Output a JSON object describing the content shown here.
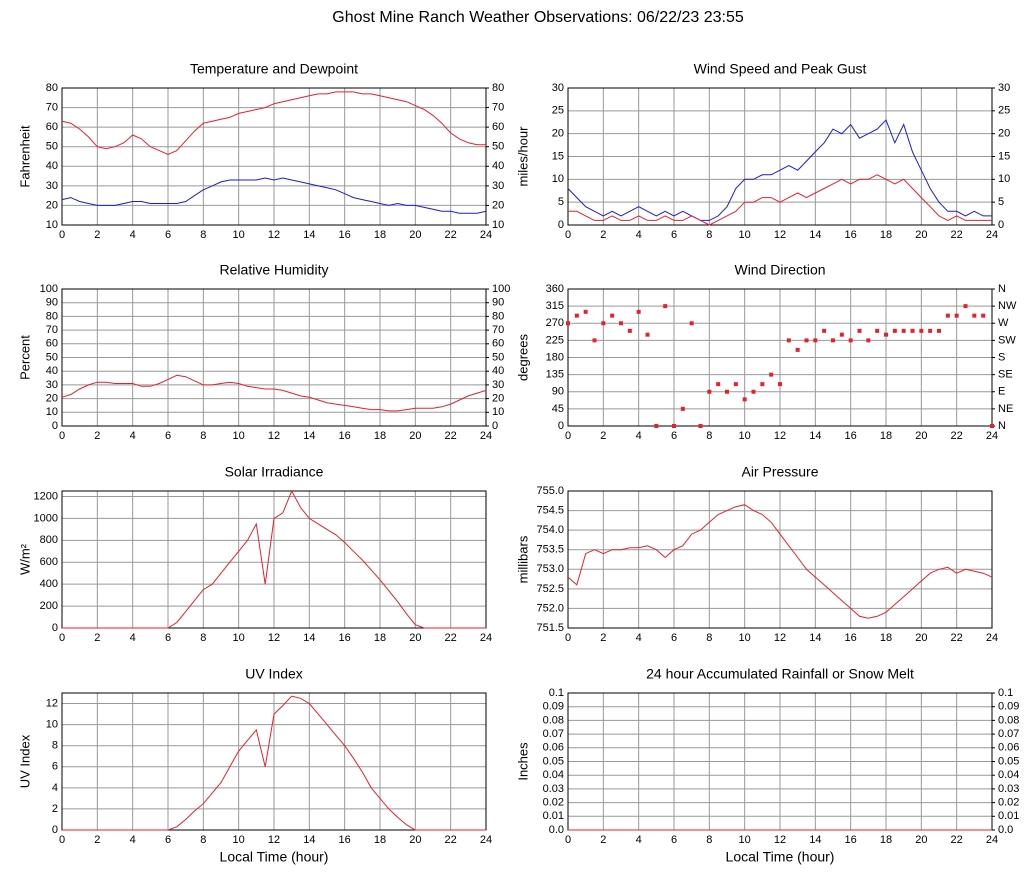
{
  "title": "Ghost Mine Ranch Weather Observations: 06/22/23 23:55",
  "chart_data": [
    {
      "type": "line",
      "title": "Temperature and Dewpoint",
      "ylabel": "Fahrenheit",
      "grid": true,
      "x": [
        0,
        0.5,
        1,
        1.5,
        2,
        2.5,
        3,
        3.5,
        4,
        4.5,
        5,
        5.5,
        6,
        6.5,
        7,
        7.5,
        8,
        8.5,
        9,
        9.5,
        10,
        10.5,
        11,
        11.5,
        12,
        12.5,
        13,
        13.5,
        14,
        14.5,
        15,
        15.5,
        16,
        16.5,
        17,
        17.5,
        18,
        18.5,
        19,
        19.5,
        20,
        20.5,
        21,
        21.5,
        22,
        22.5,
        23,
        23.5,
        24
      ],
      "xlim": [
        0,
        24
      ],
      "xticks": [
        0,
        2,
        4,
        6,
        8,
        10,
        12,
        14,
        16,
        18,
        20,
        22,
        24
      ],
      "ylim": [
        10,
        80
      ],
      "yticks": [
        10,
        20,
        30,
        40,
        50,
        60,
        70,
        80
      ],
      "y2lim": [
        10,
        80
      ],
      "y2ticks": [
        10,
        20,
        30,
        40,
        50,
        60,
        70,
        80
      ],
      "series": [
        {
          "color": "#e8202a",
          "values": [
            63,
            62,
            59,
            55,
            50,
            49,
            50,
            52,
            56,
            54,
            50,
            48,
            46,
            48,
            53,
            58,
            62,
            63,
            64,
            65,
            67,
            68,
            69,
            70,
            72,
            73,
            74,
            75,
            76,
            77,
            77,
            78,
            78,
            78,
            77,
            77,
            76,
            75,
            74,
            73,
            71,
            69,
            66,
            62,
            57,
            54,
            52,
            51,
            51
          ]
        },
        {
          "color": "#1a1ae0",
          "values": [
            23,
            24,
            22,
            21,
            20,
            20,
            20,
            21,
            22,
            22,
            21,
            21,
            21,
            21,
            22,
            25,
            28,
            30,
            32,
            33,
            33,
            33,
            33,
            34,
            33,
            34,
            33,
            32,
            31,
            30,
            29,
            28,
            26,
            24,
            23,
            22,
            21,
            20,
            21,
            20,
            20,
            19,
            18,
            17,
            17,
            16,
            16,
            16,
            17
          ]
        }
      ]
    },
    {
      "type": "line",
      "title": "Wind Speed and Peak Gust",
      "ylabel": "miles/hour",
      "grid": true,
      "x": [
        0,
        0.5,
        1,
        1.5,
        2,
        2.5,
        3,
        3.5,
        4,
        4.5,
        5,
        5.5,
        6,
        6.5,
        7,
        7.5,
        8,
        8.5,
        9,
        9.5,
        10,
        10.5,
        11,
        11.5,
        12,
        12.5,
        13,
        13.5,
        14,
        14.5,
        15,
        15.5,
        16,
        16.5,
        17,
        17.5,
        18,
        18.5,
        19,
        19.5,
        20,
        20.5,
        21,
        21.5,
        22,
        22.5,
        23,
        23.5,
        24
      ],
      "xlim": [
        0,
        24
      ],
      "xticks": [
        0,
        2,
        4,
        6,
        8,
        10,
        12,
        14,
        16,
        18,
        20,
        22,
        24
      ],
      "ylim": [
        0,
        30
      ],
      "yticks": [
        0,
        5,
        10,
        15,
        20,
        25,
        30
      ],
      "y2lim": [
        0,
        30
      ],
      "y2ticks": [
        0,
        5,
        10,
        15,
        20,
        25,
        30
      ],
      "series": [
        {
          "color": "#1a1ae0",
          "values": [
            8,
            6,
            4,
            3,
            2,
            3,
            2,
            3,
            4,
            3,
            2,
            3,
            2,
            3,
            2,
            1,
            1,
            2,
            4,
            8,
            10,
            10,
            11,
            11,
            12,
            13,
            12,
            14,
            16,
            18,
            21,
            20,
            22,
            19,
            20,
            21,
            23,
            18,
            22,
            16,
            12,
            8,
            5,
            3,
            3,
            2,
            3,
            2,
            2
          ]
        },
        {
          "color": "#e8202a",
          "values": [
            3,
            3,
            2,
            1,
            1,
            2,
            1,
            1,
            2,
            1,
            1,
            2,
            1,
            1,
            2,
            1,
            0,
            1,
            2,
            3,
            5,
            5,
            6,
            6,
            5,
            6,
            7,
            6,
            7,
            8,
            9,
            10,
            9,
            10,
            10,
            11,
            10,
            9,
            10,
            8,
            6,
            4,
            2,
            1,
            2,
            1,
            1,
            1,
            1
          ]
        }
      ]
    },
    {
      "type": "line",
      "title": "Relative Humidity",
      "ylabel": "Percent",
      "grid": true,
      "x": [
        0,
        0.5,
        1,
        1.5,
        2,
        2.5,
        3,
        3.5,
        4,
        4.5,
        5,
        5.5,
        6,
        6.5,
        7,
        7.5,
        8,
        8.5,
        9,
        9.5,
        10,
        10.5,
        11,
        11.5,
        12,
        12.5,
        13,
        13.5,
        14,
        14.5,
        15,
        15.5,
        16,
        16.5,
        17,
        17.5,
        18,
        18.5,
        19,
        19.5,
        20,
        20.5,
        21,
        21.5,
        22,
        22.5,
        23,
        23.5,
        24
      ],
      "xlim": [
        0,
        24
      ],
      "xticks": [
        0,
        2,
        4,
        6,
        8,
        10,
        12,
        14,
        16,
        18,
        20,
        22,
        24
      ],
      "ylim": [
        0,
        100
      ],
      "yticks": [
        0,
        10,
        20,
        30,
        40,
        50,
        60,
        70,
        80,
        90,
        100
      ],
      "y2lim": [
        0,
        100
      ],
      "y2ticks": [
        0,
        10,
        20,
        30,
        40,
        50,
        60,
        70,
        80,
        90,
        100
      ],
      "series": [
        {
          "color": "#e8202a",
          "values": [
            21,
            23,
            27,
            30,
            32,
            32,
            31,
            31,
            31,
            29,
            29,
            31,
            34,
            37,
            36,
            33,
            30,
            30,
            31,
            32,
            31,
            29,
            28,
            27,
            27,
            26,
            24,
            22,
            21,
            19,
            17,
            16,
            15,
            14,
            13,
            12,
            12,
            11,
            11,
            12,
            13,
            13,
            13,
            14,
            16,
            19,
            22,
            24,
            26
          ]
        }
      ]
    },
    {
      "type": "scatter",
      "title": "Wind Direction",
      "ylabel": "degrees",
      "grid": true,
      "x": [
        0,
        0.5,
        1,
        1.5,
        2,
        2.5,
        3,
        3.5,
        4,
        4.5,
        5,
        5.5,
        6,
        6.5,
        7,
        7.5,
        8,
        8.5,
        9,
        9.5,
        10,
        10.5,
        11,
        11.5,
        12,
        12.5,
        13,
        13.5,
        14,
        14.5,
        15,
        15.5,
        16,
        16.5,
        17,
        17.5,
        18,
        18.5,
        19,
        19.5,
        20,
        20.5,
        21,
        21.5,
        22,
        22.5,
        23,
        23.5,
        24
      ],
      "xlim": [
        0,
        24
      ],
      "xticks": [
        0,
        2,
        4,
        6,
        8,
        10,
        12,
        14,
        16,
        18,
        20,
        22,
        24
      ],
      "ylim": [
        0,
        360
      ],
      "yticks": [
        0,
        45,
        90,
        135,
        180,
        225,
        270,
        315,
        360
      ],
      "y2lim": [
        0,
        360
      ],
      "y2ticks": [
        {
          "value": 0,
          "label": "N"
        },
        {
          "value": 45,
          "label": "NE"
        },
        {
          "value": 90,
          "label": "E"
        },
        {
          "value": 135,
          "label": "SE"
        },
        {
          "value": 180,
          "label": "S"
        },
        {
          "value": 225,
          "label": "SW"
        },
        {
          "value": 270,
          "label": "W"
        },
        {
          "value": 315,
          "label": "NW"
        },
        {
          "value": 360,
          "label": "N"
        }
      ],
      "series": [
        {
          "color": "#e8202a",
          "values": [
            270,
            290,
            300,
            225,
            270,
            290,
            270,
            250,
            300,
            240,
            0,
            315,
            0,
            45,
            270,
            0,
            90,
            110,
            90,
            110,
            70,
            90,
            110,
            135,
            110,
            225,
            200,
            225,
            225,
            250,
            225,
            240,
            225,
            250,
            225,
            250,
            240,
            250,
            250,
            250,
            250,
            250,
            250,
            290,
            290,
            315,
            290,
            290,
            0
          ]
        }
      ]
    },
    {
      "type": "line",
      "title": "Solar Irradiance",
      "ylabel": "W/m²",
      "grid": true,
      "x": [
        0,
        0.5,
        1,
        1.5,
        2,
        2.5,
        3,
        3.5,
        4,
        4.5,
        5,
        5.5,
        6,
        6.5,
        7,
        7.5,
        8,
        8.5,
        9,
        9.5,
        10,
        10.5,
        11,
        11.5,
        12,
        12.5,
        13,
        13.5,
        14,
        14.5,
        15,
        15.5,
        16,
        16.5,
        17,
        17.5,
        18,
        18.5,
        19,
        19.5,
        20,
        20.5,
        21,
        21.5,
        22,
        22.5,
        23,
        23.5,
        24
      ],
      "xlim": [
        0,
        24
      ],
      "xticks": [
        0,
        2,
        4,
        6,
        8,
        10,
        12,
        14,
        16,
        18,
        20,
        22,
        24
      ],
      "ylim": [
        0,
        1250
      ],
      "yticks": [
        0,
        200,
        400,
        600,
        800,
        1000,
        1200
      ],
      "series": [
        {
          "color": "#e8202a",
          "values": [
            0,
            0,
            0,
            0,
            0,
            0,
            0,
            0,
            0,
            0,
            0,
            0,
            0,
            50,
            150,
            250,
            350,
            400,
            500,
            600,
            700,
            800,
            950,
            400,
            1000,
            1050,
            1250,
            1100,
            1000,
            950,
            900,
            850,
            780,
            700,
            620,
            530,
            440,
            340,
            240,
            130,
            30,
            0,
            0,
            0,
            0,
            0,
            0,
            0,
            0
          ]
        }
      ]
    },
    {
      "type": "line",
      "title": "Air Pressure",
      "ylabel": "millibars",
      "grid": true,
      "x": [
        0,
        0.5,
        1,
        1.5,
        2,
        2.5,
        3,
        3.5,
        4,
        4.5,
        5,
        5.5,
        6,
        6.5,
        7,
        7.5,
        8,
        8.5,
        9,
        9.5,
        10,
        10.5,
        11,
        11.5,
        12,
        12.5,
        13,
        13.5,
        14,
        14.5,
        15,
        15.5,
        16,
        16.5,
        17,
        17.5,
        18,
        18.5,
        19,
        19.5,
        20,
        20.5,
        21,
        21.5,
        22,
        22.5,
        23,
        23.5,
        24
      ],
      "xlim": [
        0,
        24
      ],
      "xticks": [
        0,
        2,
        4,
        6,
        8,
        10,
        12,
        14,
        16,
        18,
        20,
        22,
        24
      ],
      "ylim": [
        751.5,
        755.0
      ],
      "yticks": [
        751.5,
        {
          "value": 752,
          "label": "752.0"
        },
        752.5,
        {
          "value": 753,
          "label": "753.0"
        },
        753.5,
        {
          "value": 754,
          "label": "754.0"
        },
        754.5,
        {
          "value": 755,
          "label": "755.0"
        }
      ],
      "series": [
        {
          "color": "#e8202a",
          "values": [
            752.8,
            752.6,
            753.4,
            753.5,
            753.4,
            753.5,
            753.5,
            753.55,
            753.55,
            753.6,
            753.5,
            753.3,
            753.5,
            753.6,
            753.9,
            754.0,
            754.2,
            754.4,
            754.5,
            754.6,
            754.65,
            754.5,
            754.4,
            754.2,
            753.9,
            753.6,
            753.3,
            753.0,
            752.8,
            752.6,
            752.4,
            752.2,
            752.0,
            751.8,
            751.75,
            751.8,
            751.9,
            752.1,
            752.3,
            752.5,
            752.7,
            752.9,
            753.0,
            753.05,
            752.9,
            753.0,
            752.95,
            752.9,
            752.8
          ]
        }
      ]
    },
    {
      "type": "line",
      "title": "UV Index",
      "ylabel": "UV Index",
      "xlabel": "Local Time (hour)",
      "grid": true,
      "x": [
        0,
        0.5,
        1,
        1.5,
        2,
        2.5,
        3,
        3.5,
        4,
        4.5,
        5,
        5.5,
        6,
        6.5,
        7,
        7.5,
        8,
        8.5,
        9,
        9.5,
        10,
        10.5,
        11,
        11.5,
        12,
        12.5,
        13,
        13.5,
        14,
        14.5,
        15,
        15.5,
        16,
        16.5,
        17,
        17.5,
        18,
        18.5,
        19,
        19.5,
        20,
        20.5,
        21,
        21.5,
        22,
        22.5,
        23,
        23.5,
        24
      ],
      "xlim": [
        0,
        24
      ],
      "xticks": [
        0,
        2,
        4,
        6,
        8,
        10,
        12,
        14,
        16,
        18,
        20,
        22,
        24
      ],
      "ylim": [
        0,
        13
      ],
      "yticks": [
        0,
        2,
        4,
        6,
        8,
        10,
        12
      ],
      "series": [
        {
          "color": "#e8202a",
          "values": [
            0,
            0,
            0,
            0,
            0,
            0,
            0,
            0,
            0,
            0,
            0,
            0,
            0,
            0.3,
            1,
            1.8,
            2.5,
            3.5,
            4.5,
            6,
            7.5,
            8.5,
            9.5,
            6,
            11,
            11.8,
            12.7,
            12.5,
            12,
            11,
            10,
            9,
            8,
            6.8,
            5.5,
            4,
            3,
            2,
            1.2,
            0.5,
            0,
            0,
            0,
            0,
            0,
            0,
            0,
            0,
            0
          ]
        }
      ]
    },
    {
      "type": "line",
      "title": "24 hour Accumulated Rainfall or Snow Melt",
      "ylabel": "Inches",
      "xlabel": "Local Time (hour)",
      "grid": true,
      "x": [
        0,
        24
      ],
      "xlim": [
        0,
        24
      ],
      "xticks": [
        0,
        2,
        4,
        6,
        8,
        10,
        12,
        14,
        16,
        18,
        20,
        22,
        24
      ],
      "ylim": [
        0,
        0.1
      ],
      "yticks": [
        {
          "value": 0,
          "label": "0.0"
        },
        0.01,
        0.02,
        0.03,
        0.04,
        0.05,
        0.06,
        0.07,
        0.08,
        0.09,
        0.1
      ],
      "y2lim": [
        0,
        0.1
      ],
      "y2ticks": [
        {
          "value": 0,
          "label": "0.0"
        },
        0.01,
        0.02,
        0.03,
        0.04,
        0.05,
        0.06,
        0.07,
        0.08,
        0.09,
        0.1
      ],
      "series": [
        {
          "color": "#e8202a",
          "values": [
            0,
            0
          ]
        }
      ]
    }
  ]
}
